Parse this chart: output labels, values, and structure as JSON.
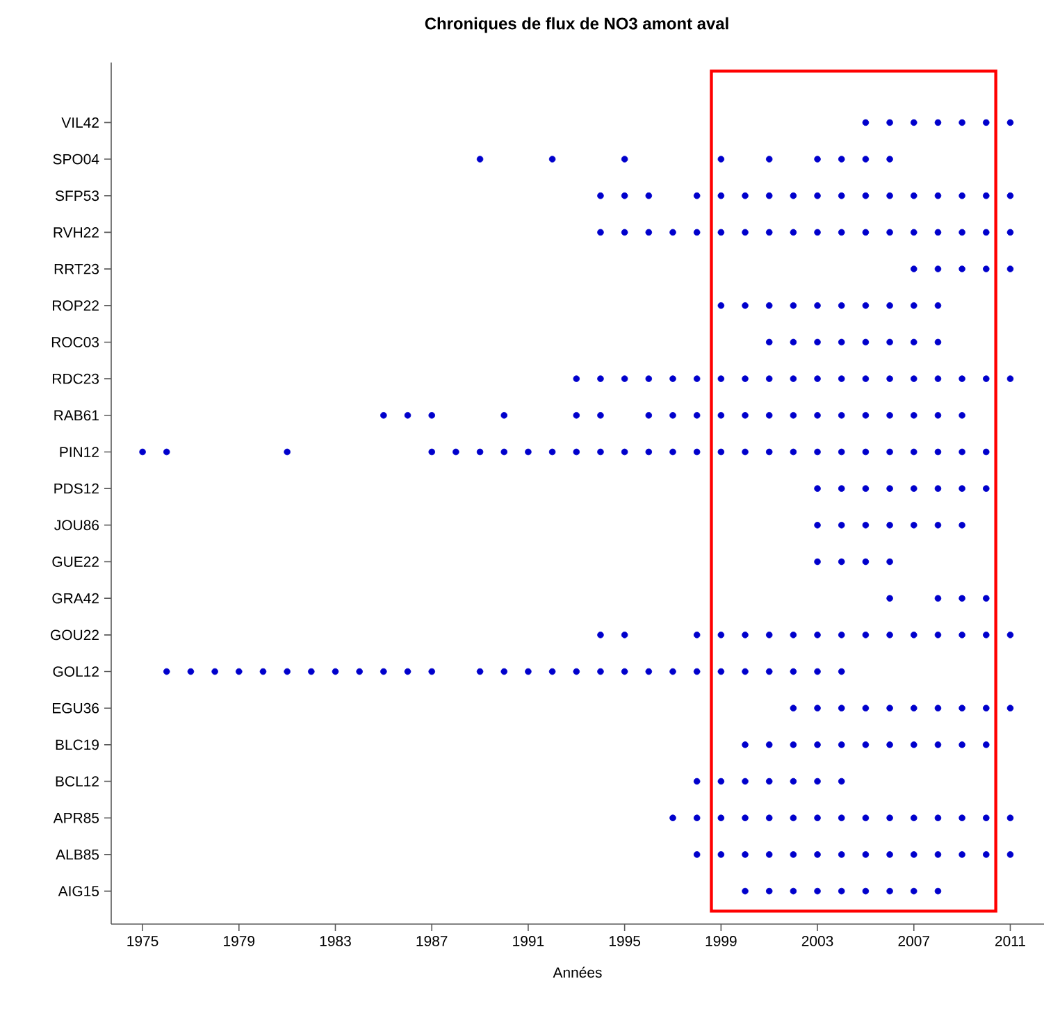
{
  "chart_data": {
    "type": "scatter",
    "title": "Chroniques de flux de NO3 amont aval",
    "xlabel": "Années",
    "orientation": "horizontal",
    "marker": "circle",
    "categories": [
      "VIL42",
      "SPO04",
      "SFP53",
      "RVH22",
      "RRT23",
      "ROP22",
      "ROC03",
      "RDC23",
      "RAB61",
      "PIN12",
      "PDS12",
      "JOU86",
      "GUE22",
      "GRA42",
      "GOU22",
      "GOL12",
      "EGU36",
      "BLC19",
      "BCL12",
      "APR85",
      "ALB85",
      "AIG15"
    ],
    "series": [
      {
        "color": "#0000cc",
        "values": [
          2005,
          2006,
          2007,
          2008,
          2009,
          2010,
          2011
        ],
        "x": [
          "VIL42",
          "VIL42",
          "VIL42",
          "VIL42",
          "VIL42",
          "VIL42",
          "VIL42"
        ]
      },
      {
        "color": "#0000cc",
        "values": [
          1989,
          1992,
          1995,
          1999,
          2001,
          2003,
          2004,
          2005,
          2006
        ],
        "x": [
          "SPO04",
          "SPO04",
          "SPO04",
          "SPO04",
          "SPO04",
          "SPO04",
          "SPO04",
          "SPO04",
          "SPO04"
        ]
      },
      {
        "color": "#0000cc",
        "values": [
          1994,
          1995,
          1996,
          1998,
          1999,
          2000,
          2001,
          2002,
          2003,
          2004,
          2005,
          2006,
          2007,
          2008,
          2009,
          2010,
          2011
        ],
        "x": [
          "SFP53",
          "SFP53",
          "SFP53",
          "SFP53",
          "SFP53",
          "SFP53",
          "SFP53",
          "SFP53",
          "SFP53",
          "SFP53",
          "SFP53",
          "SFP53",
          "SFP53",
          "SFP53",
          "SFP53",
          "SFP53",
          "SFP53"
        ]
      },
      {
        "color": "#0000cc",
        "values": [
          1994,
          1995,
          1996,
          1997,
          1998,
          1999,
          2000,
          2001,
          2002,
          2003,
          2004,
          2005,
          2006,
          2007,
          2008,
          2009,
          2010,
          2011
        ],
        "x": [
          "RVH22",
          "RVH22",
          "RVH22",
          "RVH22",
          "RVH22",
          "RVH22",
          "RVH22",
          "RVH22",
          "RVH22",
          "RVH22",
          "RVH22",
          "RVH22",
          "RVH22",
          "RVH22",
          "RVH22",
          "RVH22",
          "RVH22",
          "RVH22"
        ]
      },
      {
        "color": "#0000cc",
        "values": [
          2007,
          2008,
          2009,
          2010,
          2011
        ],
        "x": [
          "RRT23",
          "RRT23",
          "RRT23",
          "RRT23",
          "RRT23"
        ]
      },
      {
        "color": "#0000cc",
        "values": [
          1999,
          2000,
          2001,
          2002,
          2003,
          2004,
          2005,
          2006,
          2007,
          2008
        ],
        "x": [
          "ROP22",
          "ROP22",
          "ROP22",
          "ROP22",
          "ROP22",
          "ROP22",
          "ROP22",
          "ROP22",
          "ROP22",
          "ROP22"
        ]
      },
      {
        "color": "#0000cc",
        "values": [
          2001,
          2002,
          2003,
          2004,
          2005,
          2006,
          2007,
          2008
        ],
        "x": [
          "ROC03",
          "ROC03",
          "ROC03",
          "ROC03",
          "ROC03",
          "ROC03",
          "ROC03",
          "ROC03"
        ]
      },
      {
        "color": "#0000cc",
        "values": [
          1993,
          1994,
          1995,
          1996,
          1997,
          1998,
          1999,
          2000,
          2001,
          2002,
          2003,
          2004,
          2005,
          2006,
          2007,
          2008,
          2009,
          2010,
          2011
        ],
        "x": [
          "RDC23",
          "RDC23",
          "RDC23",
          "RDC23",
          "RDC23",
          "RDC23",
          "RDC23",
          "RDC23",
          "RDC23",
          "RDC23",
          "RDC23",
          "RDC23",
          "RDC23",
          "RDC23",
          "RDC23",
          "RDC23",
          "RDC23",
          "RDC23",
          "RDC23"
        ]
      },
      {
        "color": "#0000cc",
        "values": [
          1985,
          1986,
          1987,
          1990,
          1993,
          1994,
          1996,
          1997,
          1998,
          1999,
          2000,
          2001,
          2002,
          2003,
          2004,
          2005,
          2006,
          2007,
          2008,
          2009
        ],
        "x": [
          "RAB61",
          "RAB61",
          "RAB61",
          "RAB61",
          "RAB61",
          "RAB61",
          "RAB61",
          "RAB61",
          "RAB61",
          "RAB61",
          "RAB61",
          "RAB61",
          "RAB61",
          "RAB61",
          "RAB61",
          "RAB61",
          "RAB61",
          "RAB61",
          "RAB61",
          "RAB61"
        ]
      },
      {
        "color": "#0000cc",
        "values": [
          1975,
          1976,
          1981,
          1987,
          1988,
          1989,
          1990,
          1991,
          1992,
          1993,
          1994,
          1995,
          1996,
          1997,
          1998,
          1999,
          2000,
          2001,
          2002,
          2003,
          2004,
          2005,
          2006,
          2007,
          2008,
          2009,
          2010
        ],
        "x": [
          "PIN12",
          "PIN12",
          "PIN12",
          "PIN12",
          "PIN12",
          "PIN12",
          "PIN12",
          "PIN12",
          "PIN12",
          "PIN12",
          "PIN12",
          "PIN12",
          "PIN12",
          "PIN12",
          "PIN12",
          "PIN12",
          "PIN12",
          "PIN12",
          "PIN12",
          "PIN12",
          "PIN12",
          "PIN12",
          "PIN12",
          "PIN12",
          "PIN12",
          "PIN12",
          "PIN12"
        ]
      },
      {
        "color": "#0000cc",
        "values": [
          2003,
          2004,
          2005,
          2006,
          2007,
          2008,
          2009,
          2010
        ],
        "x": [
          "PDS12",
          "PDS12",
          "PDS12",
          "PDS12",
          "PDS12",
          "PDS12",
          "PDS12",
          "PDS12"
        ]
      },
      {
        "color": "#0000cc",
        "values": [
          2003,
          2004,
          2005,
          2006,
          2007,
          2008,
          2009
        ],
        "x": [
          "JOU86",
          "JOU86",
          "JOU86",
          "JOU86",
          "JOU86",
          "JOU86",
          "JOU86"
        ]
      },
      {
        "color": "#0000cc",
        "values": [
          2003,
          2004,
          2005,
          2006
        ],
        "x": [
          "GUE22",
          "GUE22",
          "GUE22",
          "GUE22"
        ]
      },
      {
        "color": "#0000cc",
        "values": [
          2006,
          2008,
          2009,
          2010
        ],
        "x": [
          "GRA42",
          "GRA42",
          "GRA42",
          "GRA42"
        ]
      },
      {
        "color": "#0000cc",
        "values": [
          1994,
          1995,
          1998,
          1999,
          2000,
          2001,
          2002,
          2003,
          2004,
          2005,
          2006,
          2007,
          2008,
          2009,
          2010,
          2011
        ],
        "x": [
          "GOU22",
          "GOU22",
          "GOU22",
          "GOU22",
          "GOU22",
          "GOU22",
          "GOU22",
          "GOU22",
          "GOU22",
          "GOU22",
          "GOU22",
          "GOU22",
          "GOU22",
          "GOU22",
          "GOU22",
          "GOU22"
        ]
      },
      {
        "color": "#0000cc",
        "values": [
          1976,
          1977,
          1978,
          1979,
          1980,
          1981,
          1982,
          1983,
          1984,
          1985,
          1986,
          1987,
          1989,
          1990,
          1991,
          1992,
          1993,
          1994,
          1995,
          1996,
          1997,
          1998,
          1999,
          2000,
          2001,
          2002,
          2003,
          2004
        ],
        "x": [
          "GOL12",
          "GOL12",
          "GOL12",
          "GOL12",
          "GOL12",
          "GOL12",
          "GOL12",
          "GOL12",
          "GOL12",
          "GOL12",
          "GOL12",
          "GOL12",
          "GOL12",
          "GOL12",
          "GOL12",
          "GOL12",
          "GOL12",
          "GOL12",
          "GOL12",
          "GOL12",
          "GOL12",
          "GOL12",
          "GOL12",
          "GOL12",
          "GOL12",
          "GOL12",
          "GOL12",
          "GOL12"
        ]
      },
      {
        "color": "#0000cc",
        "values": [
          2002,
          2003,
          2004,
          2005,
          2006,
          2007,
          2008,
          2009,
          2010,
          2011
        ],
        "x": [
          "EGU36",
          "EGU36",
          "EGU36",
          "EGU36",
          "EGU36",
          "EGU36",
          "EGU36",
          "EGU36",
          "EGU36",
          "EGU36"
        ]
      },
      {
        "color": "#0000cc",
        "values": [
          2000,
          2001,
          2002,
          2003,
          2004,
          2005,
          2006,
          2007,
          2008,
          2009,
          2010
        ],
        "x": [
          "BLC19",
          "BLC19",
          "BLC19",
          "BLC19",
          "BLC19",
          "BLC19",
          "BLC19",
          "BLC19",
          "BLC19",
          "BLC19",
          "BLC19"
        ]
      },
      {
        "color": "#0000cc",
        "values": [
          1998,
          1999,
          2000,
          2001,
          2002,
          2003,
          2004
        ],
        "x": [
          "BCL12",
          "BCL12",
          "BCL12",
          "BCL12",
          "BCL12",
          "BCL12",
          "BCL12"
        ]
      },
      {
        "color": "#0000cc",
        "values": [
          1997,
          1998,
          1999,
          2000,
          2001,
          2002,
          2003,
          2004,
          2005,
          2006,
          2007,
          2008,
          2009,
          2010,
          2011
        ],
        "x": [
          "APR85",
          "APR85",
          "APR85",
          "APR85",
          "APR85",
          "APR85",
          "APR85",
          "APR85",
          "APR85",
          "APR85",
          "APR85",
          "APR85",
          "APR85",
          "APR85",
          "APR85"
        ]
      },
      {
        "color": "#0000cc",
        "values": [
          1998,
          1999,
          2000,
          2001,
          2002,
          2003,
          2004,
          2005,
          2006,
          2007,
          2008,
          2009,
          2010,
          2011
        ],
        "x": [
          "ALB85",
          "ALB85",
          "ALB85",
          "ALB85",
          "ALB85",
          "ALB85",
          "ALB85",
          "ALB85",
          "ALB85",
          "ALB85",
          "ALB85",
          "ALB85",
          "ALB85",
          "ALB85"
        ]
      },
      {
        "color": "#0000cc",
        "values": [
          2000,
          2001,
          2002,
          2003,
          2004,
          2005,
          2006,
          2007,
          2008
        ],
        "x": [
          "AIG15",
          "AIG15",
          "AIG15",
          "AIG15",
          "AIG15",
          "AIG15",
          "AIG15",
          "AIG15",
          "AIG15"
        ]
      }
    ],
    "xlim": [
      1973.7,
      2012.4
    ],
    "xticks": [
      1975,
      1979,
      1983,
      1987,
      1991,
      1995,
      1999,
      2003,
      2007,
      2011
    ]
  }
}
